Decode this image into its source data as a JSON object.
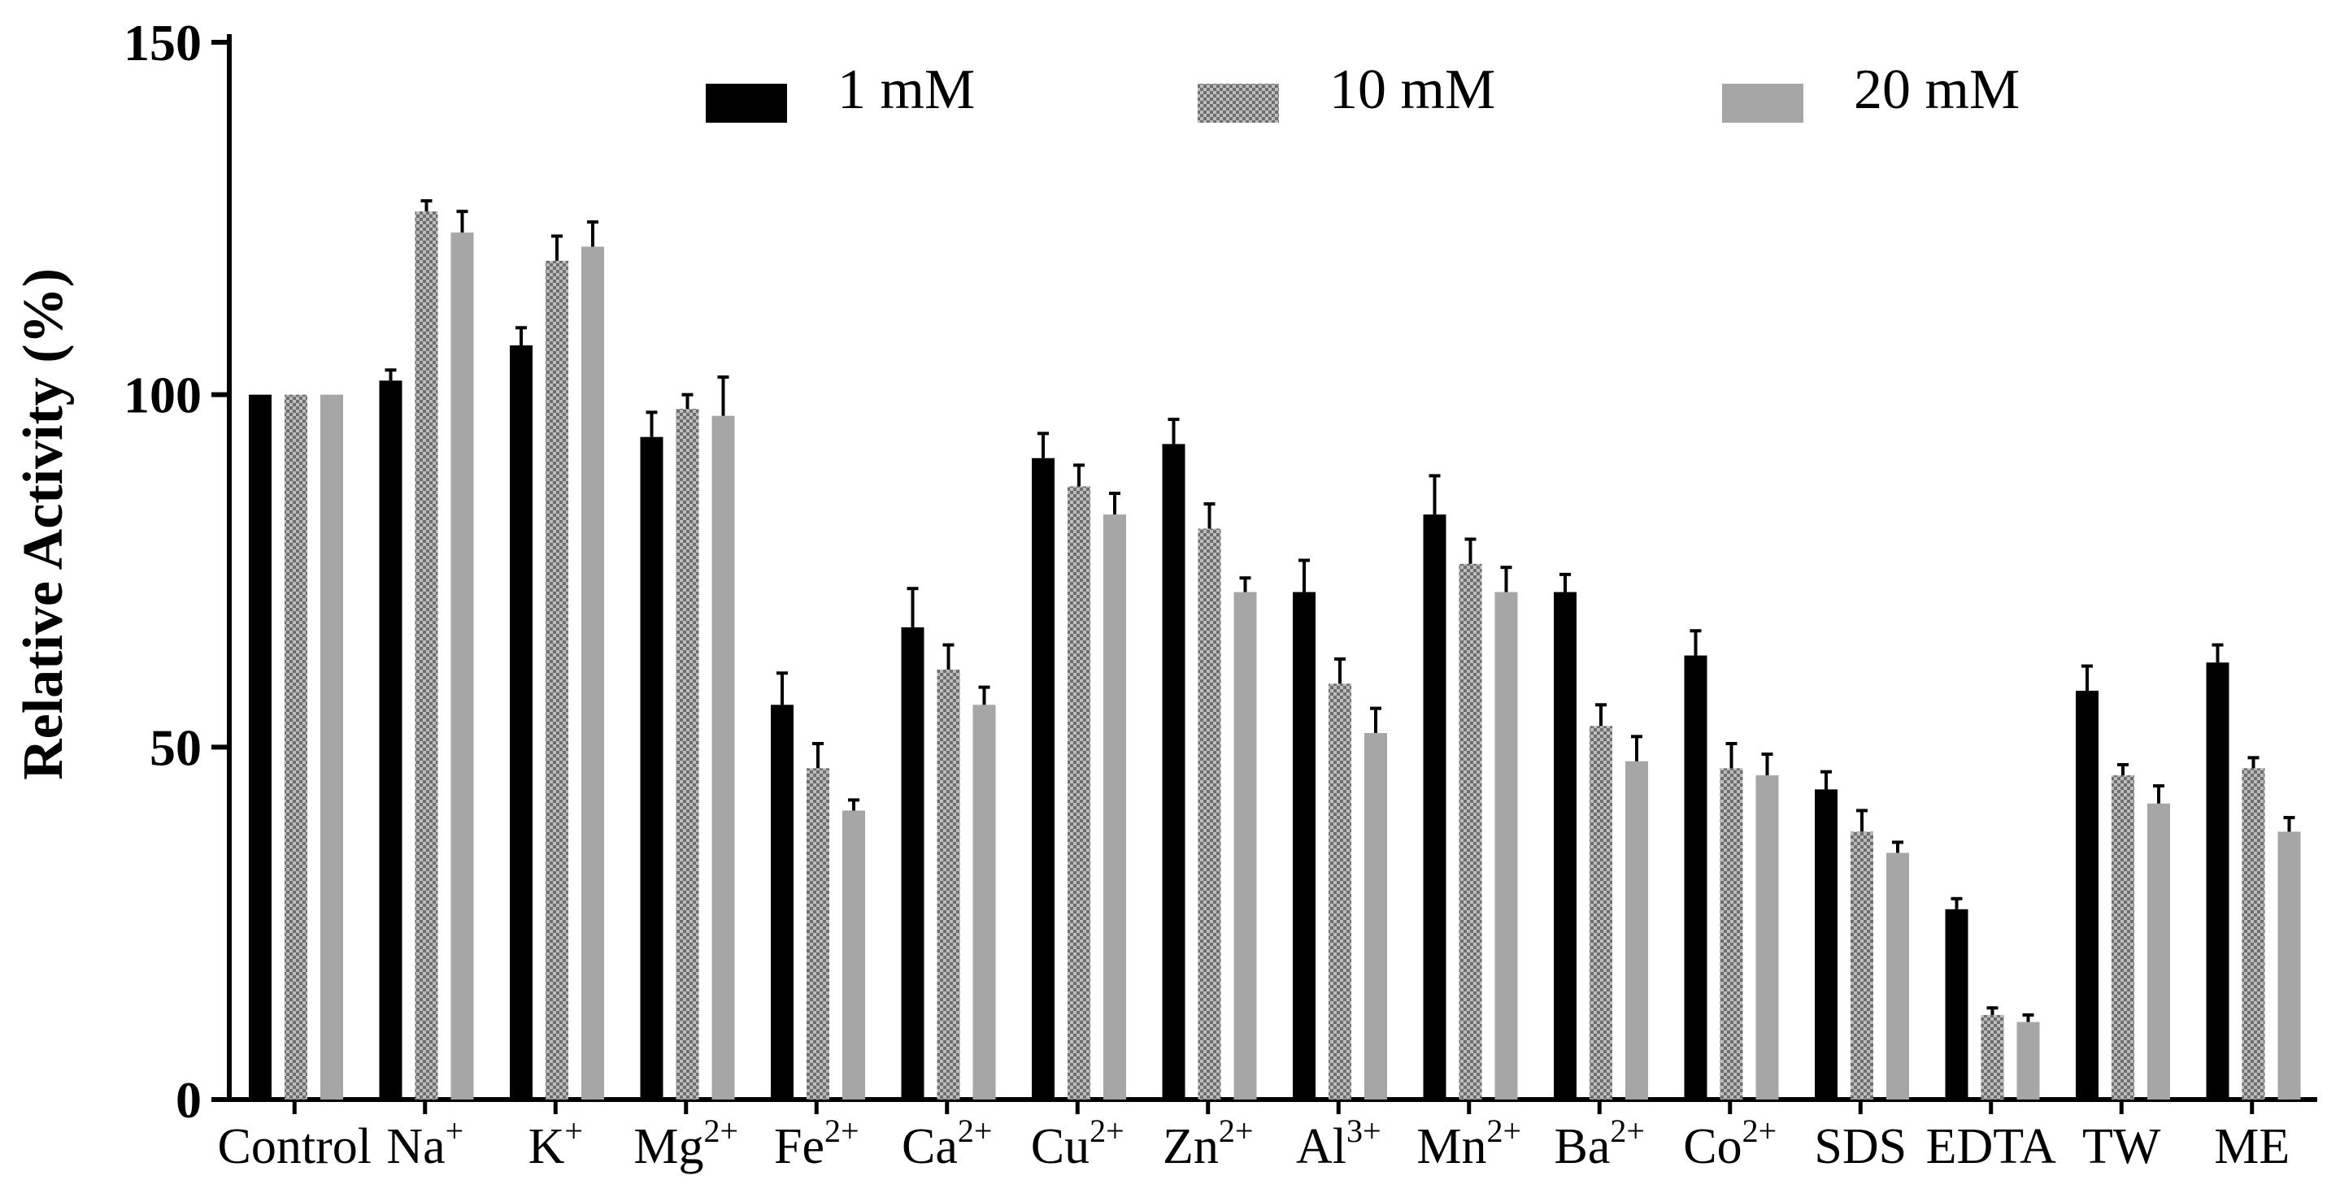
{
  "chart_data": {
    "type": "bar",
    "title": "",
    "xlabel": "",
    "ylabel": "Relative Activity (%)",
    "ylim": [
      0,
      150
    ],
    "yticks": [
      "0",
      "50",
      "100",
      "150"
    ],
    "grid": false,
    "legend_position": "top",
    "categories": [
      {
        "base": "Control",
        "sup": ""
      },
      {
        "base": "Na",
        "sup": "+"
      },
      {
        "base": "K",
        "sup": "+"
      },
      {
        "base": "Mg",
        "sup": "2+"
      },
      {
        "base": "Fe",
        "sup": "2+"
      },
      {
        "base": "Ca",
        "sup": "2+"
      },
      {
        "base": "Cu",
        "sup": "2+"
      },
      {
        "base": "Zn",
        "sup": "2+"
      },
      {
        "base": "Al",
        "sup": "3+"
      },
      {
        "base": "Mn",
        "sup": "2+"
      },
      {
        "base": "Ba",
        "sup": "2+"
      },
      {
        "base": "Co",
        "sup": "2+"
      },
      {
        "base": "SDS",
        "sup": ""
      },
      {
        "base": "EDTA",
        "sup": ""
      },
      {
        "base": "TW",
        "sup": ""
      },
      {
        "base": "ME",
        "sup": ""
      }
    ],
    "series": [
      {
        "name": "1 mM",
        "color": "#000000",
        "pattern": "solid",
        "values": [
          100,
          102,
          107,
          94,
          56,
          67,
          91,
          93,
          72,
          83,
          72,
          63,
          44,
          27,
          58,
          62
        ],
        "errors": [
          0,
          1.5,
          2.5,
          3.5,
          4.5,
          5.5,
          3.5,
          3.5,
          4.5,
          5.5,
          2.5,
          3.5,
          2.5,
          1.5,
          3.5,
          2.5
        ]
      },
      {
        "name": "10 mM",
        "color": "#8c8c8c",
        "pattern": "checker",
        "values": [
          100,
          126,
          119,
          98,
          47,
          61,
          87,
          81,
          59,
          76,
          53,
          47,
          38,
          12,
          46,
          47
        ],
        "errors": [
          0,
          1.5,
          3.5,
          2,
          3.5,
          3.5,
          3,
          3.5,
          3.5,
          3.5,
          3,
          3.5,
          3,
          1,
          1.5,
          1.5
        ]
      },
      {
        "name": "20 mM",
        "color": "#a6a6a6",
        "pattern": "solid",
        "values": [
          100,
          123,
          121,
          97,
          41,
          56,
          83,
          72,
          52,
          72,
          48,
          46,
          35,
          11,
          42,
          38
        ],
        "errors": [
          0,
          3,
          3.5,
          5.5,
          1.5,
          2.5,
          3,
          2,
          3.5,
          3.5,
          3.5,
          3,
          1.5,
          1,
          2.5,
          2
        ]
      }
    ]
  }
}
